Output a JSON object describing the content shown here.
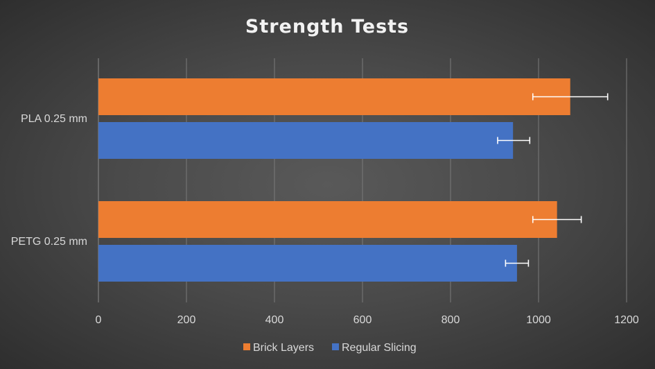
{
  "chart_data": {
    "type": "bar",
    "orientation": "horizontal",
    "title": "Strength Tests",
    "categories": [
      "PLA 0.25 mm",
      "PETG 0.25 mm"
    ],
    "series": [
      {
        "name": "Brick Layers",
        "color": "#ed7d31",
        "values": [
          1072,
          1042
        ],
        "error_low": [
          987,
          987
        ],
        "error_high": [
          1157,
          1097
        ]
      },
      {
        "name": "Regular Slicing",
        "color": "#4472c4",
        "values": [
          942,
          951
        ],
        "error_low": [
          907,
          925
        ],
        "error_high": [
          980,
          977
        ]
      }
    ],
    "xlim": [
      0,
      1200
    ],
    "xticks": [
      "0",
      "200",
      "400",
      "600",
      "800",
      "1000",
      "1200"
    ],
    "grid": true,
    "legend_position": "bottom"
  }
}
